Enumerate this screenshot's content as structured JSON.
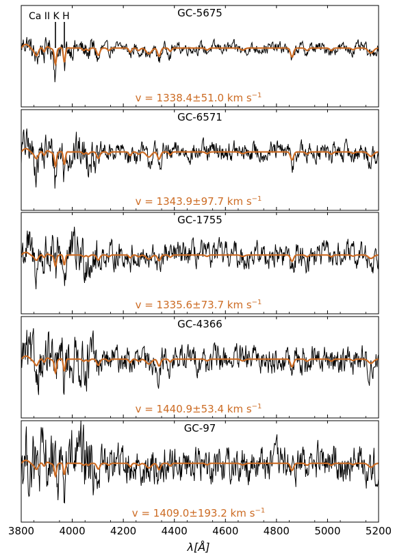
{
  "chart_data": {
    "type": "line",
    "xlabel": "λ[Å]",
    "x_range": [
      3800,
      5200
    ],
    "x_ticks": [
      3800,
      4000,
      4200,
      4400,
      4600,
      4800,
      5000,
      5200
    ],
    "x_tick_labels": [
      "3800",
      "4000",
      "4200",
      "4400",
      "4600",
      "4800",
      "5000",
      "5200"
    ],
    "colors": {
      "observed": "#000000",
      "template": "#cc6b23",
      "velocity_text": "#cc6b23"
    },
    "line_markers": {
      "label": "Ca II K H",
      "label_parts": [
        "Ca II",
        "K",
        "H"
      ],
      "wavelengths": [
        3934,
        3969
      ]
    },
    "panels": [
      {
        "title": "GC-5675",
        "velocity_text": "v = 1338.4±51.0 km s",
        "velocity_unit_sup": "−1",
        "noise": 0.35,
        "template_strength": 1.0
      },
      {
        "title": "GC-6571",
        "velocity_text": "v = 1343.9±97.7 km s",
        "velocity_unit_sup": "−1",
        "noise": 0.6,
        "template_strength": 0.9
      },
      {
        "title": "GC-1755",
        "velocity_text": "v = 1335.6±73.7 km s",
        "velocity_unit_sup": "−1",
        "noise": 0.75,
        "template_strength": 0.7
      },
      {
        "title": "GC-4366",
        "velocity_text": "v = 1440.9±53.4 km s",
        "velocity_unit_sup": "−1",
        "noise": 0.8,
        "template_strength": 0.85
      },
      {
        "title": "GC-97",
        "velocity_text": "v = 1409.0±193.2 km s",
        "velocity_unit_sup": "−1",
        "noise": 1.1,
        "template_strength": 0.8
      }
    ]
  }
}
